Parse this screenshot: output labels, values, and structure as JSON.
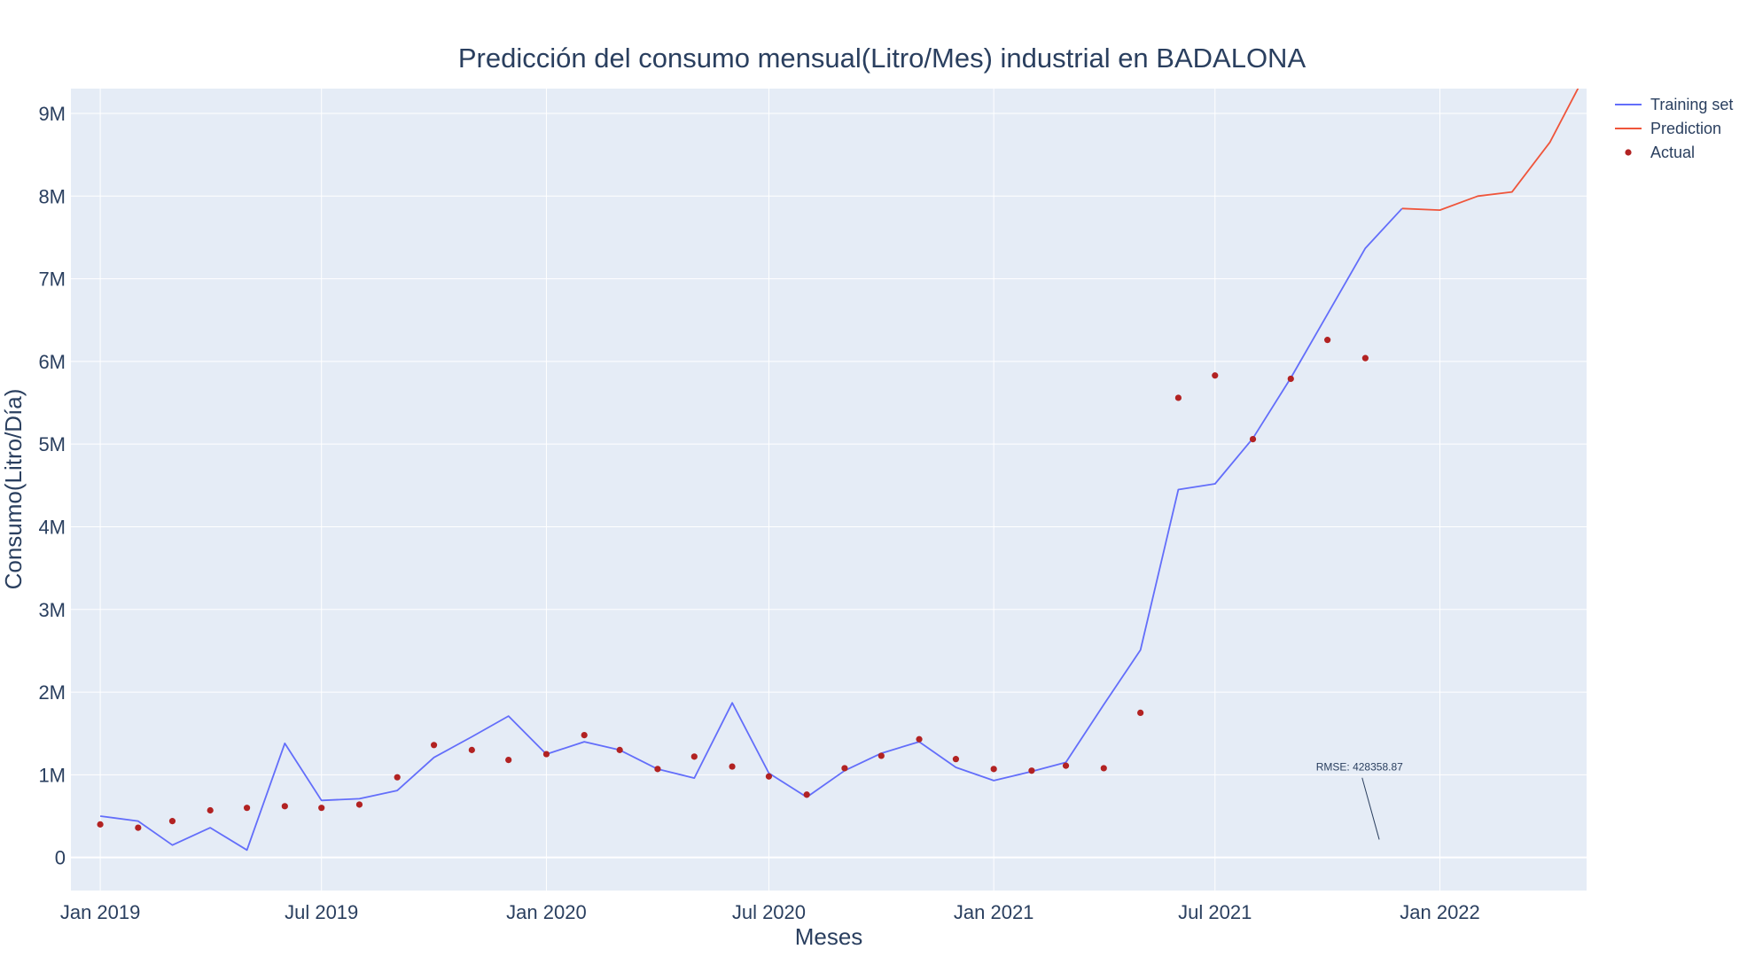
{
  "chart_data": {
    "type": "line",
    "title": "Predicción del consumo mensual(Litro/Mes) industrial en BADALONA",
    "xlabel": "Meses",
    "ylabel": "Consumo(Litro/Día)",
    "x_tick_labels": [
      "Jan 2019",
      "Jul 2019",
      "Jan 2020",
      "Jul 2020",
      "Jan 2021",
      "Jul 2021",
      "Jan 2022"
    ],
    "y_tick_labels": [
      "0",
      "1M",
      "2M",
      "3M",
      "4M",
      "5M",
      "6M",
      "7M",
      "8M",
      "9M"
    ],
    "y_ticks": [
      0,
      1000000,
      2000000,
      3000000,
      4000000,
      5000000,
      6000000,
      7000000,
      8000000,
      9000000
    ],
    "ylim": [
      -400000,
      9300000
    ],
    "xlim": [
      "2018-12-08",
      "2022-05-01"
    ],
    "grid": true,
    "legend_position": "top-right",
    "colors": {
      "training": "#636efa",
      "prediction": "#ef553b",
      "actual": "#b22222",
      "plot_bg": "#e5ecf6",
      "grid": "#ffffff"
    },
    "series": [
      {
        "name": "Training set",
        "kind": "line",
        "x": [
          "2019-01",
          "2019-02",
          "2019-03",
          "2019-04",
          "2019-05",
          "2019-06",
          "2019-07",
          "2019-08",
          "2019-09",
          "2019-10",
          "2019-11",
          "2019-12",
          "2020-01",
          "2020-02",
          "2020-03",
          "2020-04",
          "2020-05",
          "2020-06",
          "2020-07",
          "2020-08",
          "2020-09",
          "2020-10",
          "2020-11",
          "2020-12",
          "2021-01",
          "2021-02",
          "2021-03",
          "2021-04",
          "2021-05",
          "2021-06",
          "2021-07",
          "2021-08",
          "2021-09",
          "2021-10",
          "2021-11",
          "2021-12"
        ],
        "y": [
          500000,
          440000,
          150000,
          360000,
          90000,
          1380000,
          690000,
          710000,
          810000,
          1210000,
          1460000,
          1710000,
          1250000,
          1400000,
          1300000,
          1070000,
          960000,
          1870000,
          1020000,
          730000,
          1050000,
          1260000,
          1400000,
          1090000,
          930000,
          1040000,
          1150000,
          1850000,
          2510000,
          4450000,
          4520000,
          5070000,
          5800000,
          6570000,
          7370000,
          7850000
        ]
      },
      {
        "name": "Prediction",
        "kind": "line",
        "x": [
          "2021-12",
          "2022-01",
          "2022-02",
          "2022-03",
          "2022-04",
          "2022-05"
        ],
        "y": [
          7850000,
          7830000,
          8000000,
          8050000,
          8650000,
          9500000
        ]
      },
      {
        "name": "Actual",
        "kind": "scatter",
        "x": [
          "2019-01",
          "2019-02",
          "2019-03",
          "2019-04",
          "2019-05",
          "2019-06",
          "2019-07",
          "2019-08",
          "2019-09",
          "2019-10",
          "2019-11",
          "2019-12",
          "2020-01",
          "2020-02",
          "2020-03",
          "2020-04",
          "2020-05",
          "2020-06",
          "2020-07",
          "2020-08",
          "2020-09",
          "2020-10",
          "2020-11",
          "2020-12",
          "2021-01",
          "2021-02",
          "2021-03",
          "2021-04",
          "2021-05",
          "2021-06",
          "2021-07",
          "2021-08",
          "2021-09",
          "2021-10",
          "2021-11"
        ],
        "y": [
          400000,
          360000,
          440000,
          570000,
          600000,
          620000,
          600000,
          640000,
          970000,
          1360000,
          1300000,
          1180000,
          1250000,
          1480000,
          1300000,
          1070000,
          1220000,
          1100000,
          980000,
          760000,
          1080000,
          1230000,
          1430000,
          1190000,
          1070000,
          1050000,
          1110000,
          1080000,
          1750000,
          5560000,
          5830000,
          5060000,
          5790000,
          6260000,
          6040000
        ]
      }
    ],
    "annotations": [
      {
        "text": "RMSE: 428358.87",
        "x": "2021-12",
        "y": 900000,
        "arrow_to_x": "2021-12",
        "arrow_to_y": 560000
      }
    ]
  }
}
